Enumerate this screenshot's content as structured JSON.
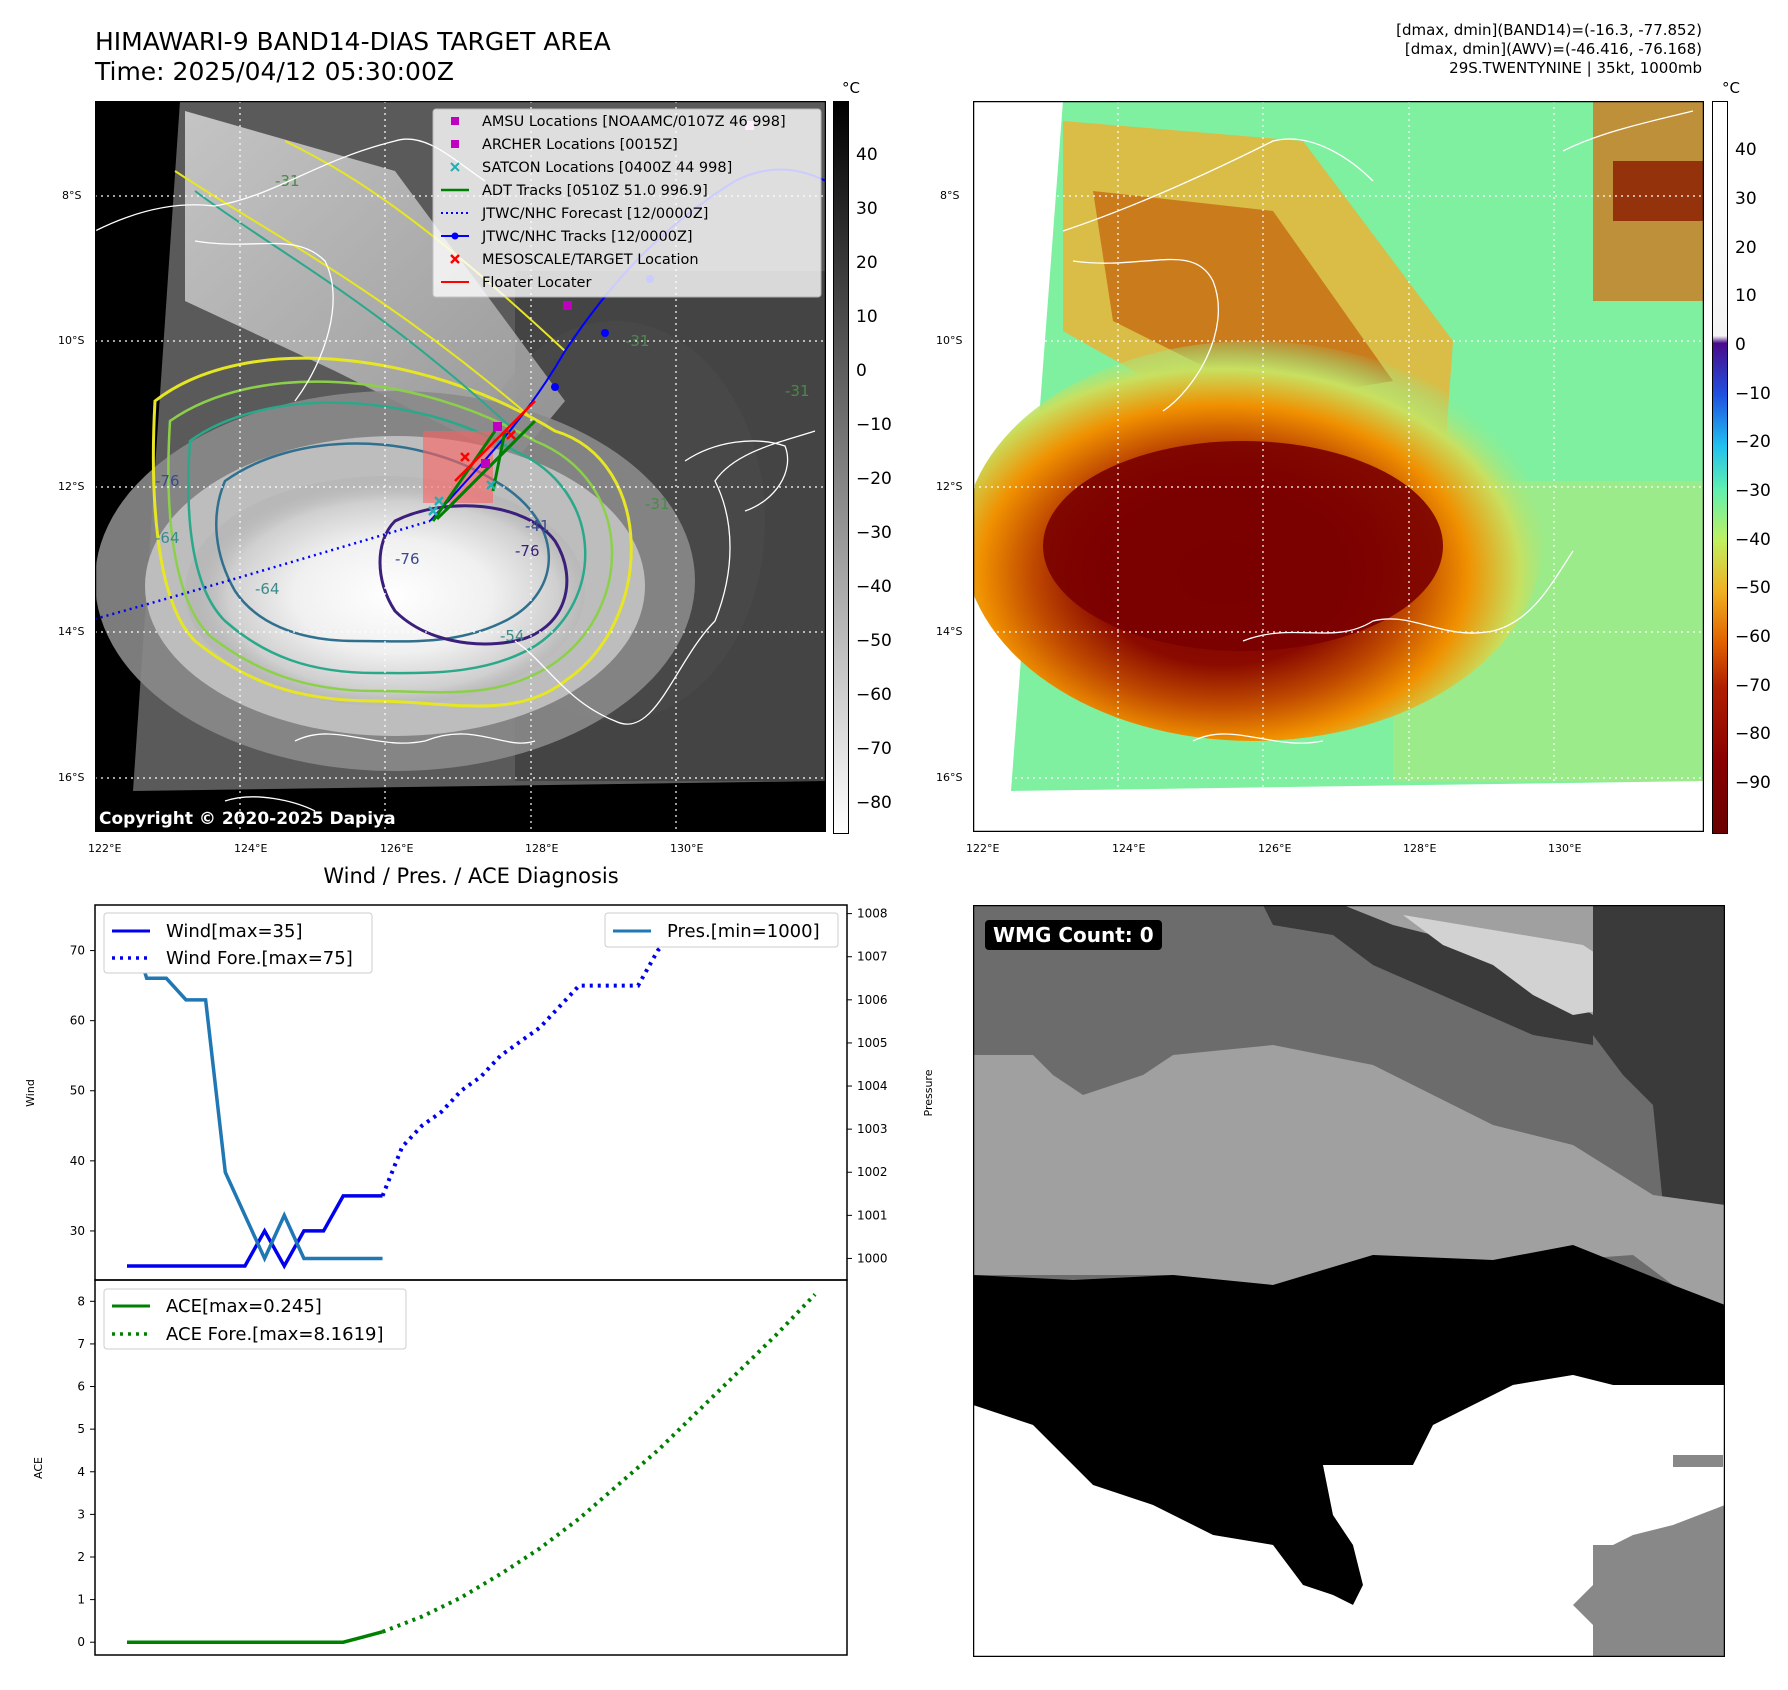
{
  "header": {
    "title_line1": "HIMAWARI-9 BAND14-DIAS TARGET AREA",
    "title_line2": "Time: 2025/04/12 05:30:00Z",
    "stats_line1": "[dmax, dmin](BAND14)=(-16.3, -77.852)",
    "stats_line2": "[dmax, dmin](AWV)=(-46.416, -76.168)",
    "stats_line3": "29S.TWENTYNINE | 35kt, 1000mb"
  },
  "map_left": {
    "lat_labels": [
      "8°S",
      "10°S",
      "12°S",
      "14°S",
      "16°S"
    ],
    "lon_labels": [
      "122°E",
      "124°E",
      "126°E",
      "128°E",
      "130°E"
    ],
    "copyright": "Copyright © 2020-2025 Dapiya",
    "contour_labels": [
      "-76",
      "-76",
      "-64",
      "-54",
      "-31",
      "-31",
      "-31",
      "-41",
      "-31",
      "-76",
      "-64"
    ],
    "legend": [
      {
        "label": "AMSU Locations [NOAAMC/0107Z 46 998]",
        "marker": "square",
        "color": "#c000c0"
      },
      {
        "label": "ARCHER Locations [0015Z]",
        "marker": "square",
        "color": "#c000c0"
      },
      {
        "label": "SATCON Locations [0400Z 44 998]",
        "marker": "x",
        "color": "#20b0b0"
      },
      {
        "label": "ADT Tracks [0510Z 51.0 996.9]",
        "marker": "line",
        "color": "#008000"
      },
      {
        "label": "JTWC/NHC Forecast [12/0000Z]",
        "marker": "dotted",
        "color": "#0000ff"
      },
      {
        "label": "JTWC/NHC Tracks [12/0000Z]",
        "marker": "line-dot",
        "color": "#0000ff"
      },
      {
        "label": "MESOSCALE/TARGET Location",
        "marker": "x",
        "color": "#ff0000"
      },
      {
        "label": "Floater Locater",
        "marker": "line",
        "color": "#ff0000"
      }
    ]
  },
  "colorbar_left": {
    "unit": "°C",
    "ticks": [
      "40",
      "30",
      "20",
      "10",
      "0",
      "−10",
      "−20",
      "−30",
      "−40",
      "−50",
      "−60",
      "−70",
      "−80"
    ]
  },
  "map_right": {
    "lat_labels": [
      "8°S",
      "10°S",
      "12°S",
      "14°S",
      "16°S"
    ],
    "lon_labels": [
      "122°E",
      "124°E",
      "126°E",
      "128°E",
      "130°E"
    ]
  },
  "colorbar_right": {
    "unit": "°C",
    "ticks": [
      "40",
      "30",
      "20",
      "10",
      "0",
      "−10",
      "−20",
      "−30",
      "−40",
      "−50",
      "−60",
      "−70",
      "−80",
      "−90"
    ]
  },
  "diagnosis": {
    "title": "Wind / Pres. / ACE Diagnosis"
  },
  "wmg": {
    "badge": "WMG Count: 0"
  },
  "chart_data": [
    {
      "type": "line",
      "title": "Wind / Pres. / ACE Diagnosis",
      "ylabel": "Wind",
      "y2label": "Pressure",
      "ylim": [
        23,
        76.5
      ],
      "y2lim": [
        999.5,
        1008.2
      ],
      "yticks": [
        30,
        40,
        50,
        60,
        70
      ],
      "y2ticks": [
        1000,
        1001,
        1002,
        1003,
        1004,
        1005,
        1006,
        1007,
        1008
      ],
      "legend": [
        "Wind[max=35]",
        "Wind Fore.[max=75]",
        "Pres.[min=1000]"
      ],
      "series": [
        {
          "name": "Wind[max=35]",
          "style": "solid",
          "color": "#0000ee",
          "axis": "left",
          "x": [
            0,
            1,
            2,
            3,
            4,
            5,
            6,
            7,
            8,
            9,
            10,
            11,
            12,
            13
          ],
          "y": [
            25,
            25,
            25,
            25,
            25,
            25,
            25,
            30,
            25,
            30,
            30,
            35,
            35,
            35
          ]
        },
        {
          "name": "Wind Fore.[max=75]",
          "style": "dotted",
          "color": "#0000ee",
          "axis": "left",
          "x": [
            13,
            14,
            15,
            16,
            17,
            18,
            19,
            20,
            21,
            22,
            23,
            24,
            25,
            26,
            27,
            28,
            29,
            30,
            31,
            32,
            33,
            34,
            35
          ],
          "y": [
            35,
            42,
            45,
            47,
            50,
            52,
            55,
            57,
            59,
            62,
            65,
            65,
            65,
            65,
            70,
            73,
            75,
            75,
            75,
            75,
            73,
            73,
            73
          ]
        },
        {
          "name": "Pres.[min=1000]",
          "style": "solid",
          "color": "#1f77b4",
          "axis": "right",
          "x": [
            0,
            1,
            2,
            3,
            4,
            5,
            6,
            7,
            8,
            9,
            10,
            11,
            12,
            13
          ],
          "y": [
            1008,
            1006.5,
            1006.5,
            1006,
            1006,
            1002,
            1001,
            1000,
            1001,
            1000,
            1000,
            1000,
            1000,
            1000
          ]
        }
      ]
    },
    {
      "type": "line",
      "ylabel": "ACE",
      "ylim": [
        -0.3,
        8.5
      ],
      "yticks": [
        0,
        1,
        2,
        3,
        4,
        5,
        6,
        7,
        8
      ],
      "legend": [
        "ACE[max=0.245]",
        "ACE Fore.[max=8.1619]"
      ],
      "series": [
        {
          "name": "ACE[max=0.245]",
          "style": "solid",
          "color": "#008000",
          "x": [
            0,
            1,
            2,
            3,
            4,
            5,
            6,
            7,
            8,
            9,
            10,
            11,
            12,
            13
          ],
          "y": [
            0,
            0,
            0,
            0,
            0,
            0,
            0,
            0,
            0,
            0,
            0,
            0,
            0.12,
            0.245
          ]
        },
        {
          "name": "ACE Fore.[max=8.1619]",
          "style": "dotted",
          "color": "#008000",
          "x": [
            13,
            15,
            17,
            19,
            21,
            23,
            25,
            27,
            29,
            31,
            33,
            35
          ],
          "y": [
            0.245,
            0.6,
            1.05,
            1.6,
            2.2,
            2.9,
            3.7,
            4.5,
            5.4,
            6.3,
            7.2,
            8.1619
          ]
        }
      ]
    }
  ]
}
